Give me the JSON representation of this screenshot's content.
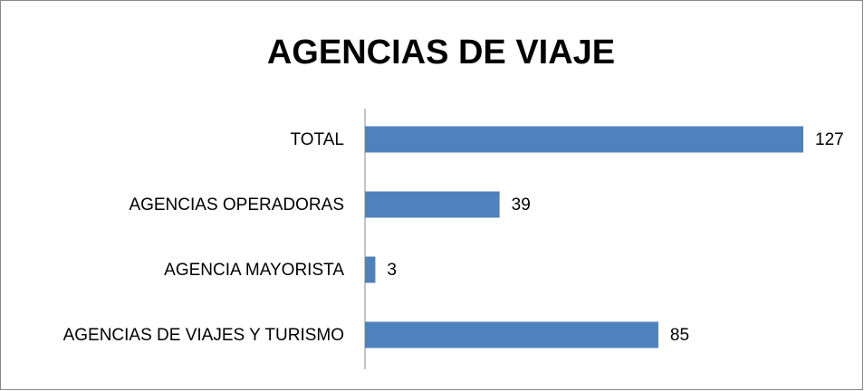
{
  "chart_data": {
    "type": "bar",
    "orientation": "horizontal",
    "title": "AGENCIAS DE VIAJE",
    "categories": [
      "TOTAL",
      "AGENCIAS OPERADORAS",
      "AGENCIA MAYORISTA",
      "AGENCIAS DE VIAJES Y TURISMO"
    ],
    "values": [
      127,
      39,
      3,
      85
    ],
    "color": "#4f81bd"
  }
}
